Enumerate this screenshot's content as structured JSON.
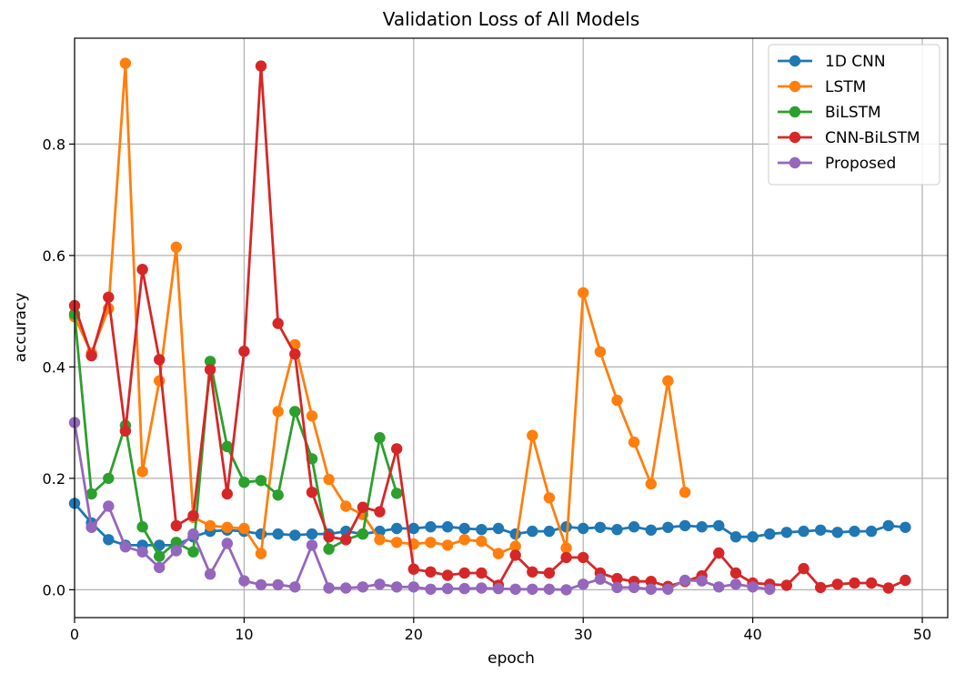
{
  "chart_data": {
    "type": "line",
    "title": "Validation Loss of All Models",
    "xlabel": "epoch",
    "ylabel": "accuracy",
    "xlim": [
      0,
      51.5
    ],
    "ylim": [
      -0.05,
      0.99
    ],
    "xticks": [
      0,
      10,
      20,
      30,
      40,
      50
    ],
    "yticks": [
      0.0,
      0.2,
      0.4,
      0.6,
      0.8
    ],
    "ytick_labels": [
      "0.0",
      "0.2",
      "0.4",
      "0.6",
      "0.8"
    ],
    "grid": true,
    "legend_position": "top-right",
    "series": [
      {
        "name": "1D CNN",
        "color": "#1f77b4",
        "x": [
          0,
          1,
          2,
          3,
          4,
          5,
          6,
          7,
          8,
          9,
          10,
          11,
          12,
          13,
          14,
          15,
          16,
          17,
          18,
          19,
          20,
          21,
          22,
          23,
          24,
          25,
          26,
          27,
          28,
          29,
          30,
          31,
          32,
          33,
          34,
          35,
          36,
          37,
          38,
          39,
          40,
          41,
          42,
          43,
          44,
          45,
          46,
          47,
          48,
          49
        ],
        "values": [
          0.155,
          0.12,
          0.09,
          0.08,
          0.08,
          0.08,
          0.08,
          0.095,
          0.105,
          0.107,
          0.105,
          0.1,
          0.1,
          0.098,
          0.1,
          0.1,
          0.105,
          0.1,
          0.105,
          0.11,
          0.11,
          0.113,
          0.113,
          0.11,
          0.108,
          0.11,
          0.1,
          0.105,
          0.105,
          0.113,
          0.11,
          0.112,
          0.108,
          0.113,
          0.107,
          0.112,
          0.115,
          0.113,
          0.115,
          0.095,
          0.095,
          0.1,
          0.103,
          0.105,
          0.107,
          0.103,
          0.105,
          0.105,
          0.115,
          0.112
        ]
      },
      {
        "name": "LSTM",
        "color": "#ff7f0e",
        "x": [
          0,
          1,
          2,
          3,
          4,
          5,
          6,
          7,
          8,
          9,
          10,
          11,
          12,
          13,
          14,
          15,
          16,
          17,
          18,
          19,
          20,
          21,
          22,
          23,
          24,
          25,
          26,
          27,
          28,
          29,
          30,
          31,
          32,
          33,
          34,
          35,
          36
        ],
        "values": [
          0.49,
          0.425,
          0.505,
          0.945,
          0.212,
          0.375,
          0.615,
          0.13,
          0.115,
          0.112,
          0.11,
          0.065,
          0.32,
          0.44,
          0.312,
          0.198,
          0.15,
          0.135,
          0.09,
          0.085,
          0.082,
          0.085,
          0.08,
          0.09,
          0.087,
          0.065,
          0.078,
          0.277,
          0.165,
          0.075,
          0.533,
          0.427,
          0.34,
          0.265,
          0.19,
          0.375,
          0.175
        ]
      },
      {
        "name": "BiLSTM",
        "color": "#2ca02c",
        "x": [
          0,
          1,
          2,
          3,
          4,
          5,
          6,
          7,
          8,
          9,
          10,
          11,
          12,
          13,
          14,
          15,
          16,
          17,
          18,
          19
        ],
        "values": [
          0.495,
          0.172,
          0.2,
          0.295,
          0.113,
          0.06,
          0.085,
          0.068,
          0.41,
          0.257,
          0.193,
          0.196,
          0.17,
          0.32,
          0.235,
          0.073,
          0.09,
          0.1,
          0.273,
          0.173
        ]
      },
      {
        "name": "CNN-BiLSTM",
        "color": "#d62728",
        "x": [
          0,
          1,
          2,
          3,
          4,
          5,
          6,
          7,
          8,
          9,
          10,
          11,
          12,
          13,
          14,
          15,
          16,
          17,
          18,
          19,
          20,
          21,
          22,
          23,
          24,
          25,
          26,
          27,
          28,
          29,
          30,
          31,
          32,
          33,
          34,
          35,
          36,
          37,
          38,
          39,
          40,
          41,
          42,
          43,
          44,
          45,
          46,
          47,
          48,
          49
        ],
        "values": [
          0.51,
          0.42,
          0.525,
          0.285,
          0.575,
          0.413,
          0.115,
          0.133,
          0.395,
          0.172,
          0.428,
          0.94,
          0.478,
          0.423,
          0.175,
          0.095,
          0.09,
          0.148,
          0.14,
          0.253,
          0.037,
          0.032,
          0.026,
          0.03,
          0.03,
          0.008,
          0.062,
          0.032,
          0.03,
          0.058,
          0.058,
          0.03,
          0.02,
          0.015,
          0.015,
          0.006,
          0.015,
          0.025,
          0.066,
          0.03,
          0.012,
          0.01,
          0.008,
          0.038,
          0.004,
          0.01,
          0.012,
          0.012,
          0.003,
          0.017
        ]
      },
      {
        "name": "Proposed",
        "color": "#9467bd",
        "x": [
          0,
          1,
          2,
          3,
          4,
          5,
          6,
          7,
          8,
          9,
          10,
          11,
          12,
          13,
          14,
          15,
          16,
          17,
          18,
          19,
          20,
          21,
          22,
          23,
          24,
          25,
          26,
          27,
          28,
          29,
          30,
          31,
          32,
          33,
          34,
          35,
          36,
          37,
          38,
          39,
          40,
          41
        ],
        "values": [
          0.3,
          0.112,
          0.15,
          0.077,
          0.068,
          0.04,
          0.07,
          0.1,
          0.028,
          0.083,
          0.016,
          0.009,
          0.009,
          0.005,
          0.08,
          0.003,
          0.003,
          0.005,
          0.01,
          0.005,
          0.005,
          0.001,
          0.002,
          0.002,
          0.003,
          0.002,
          0.001,
          0.001,
          0.001,
          0.0,
          0.01,
          0.019,
          0.004,
          0.004,
          0.001,
          0.001,
          0.017,
          0.016,
          0.005,
          0.01,
          0.005,
          0.001
        ]
      }
    ]
  }
}
